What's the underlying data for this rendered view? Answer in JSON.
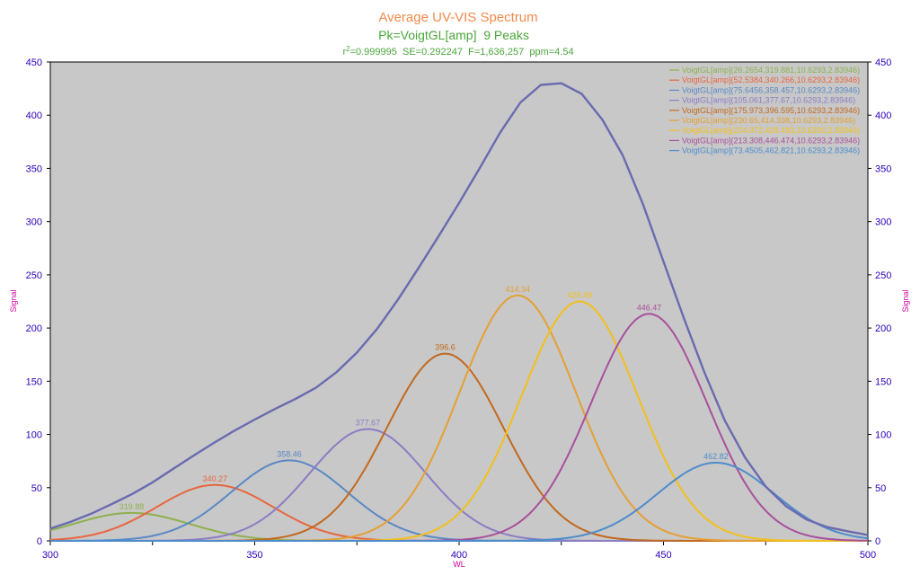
{
  "chart_data": {
    "type": "line",
    "title": "Average UV-VIS Spectrum",
    "subtitle": "Pk=VoigtGL[amp]  9 Peaks",
    "stats": {
      "r2_label": "r",
      "r2_sup": "2",
      "r2_value": "=0.999995",
      "se": "SE=0.292247",
      "f": "F=1,636,257",
      "ppm": "ppm=4.54"
    },
    "xlabel": "WL",
    "ylabel": "Signal",
    "ylabel_right": "Signal",
    "xlim": [
      300,
      500
    ],
    "ylim": [
      0,
      450
    ],
    "xticks": [
      300,
      350,
      400,
      450,
      500
    ],
    "yticks": [
      0,
      50,
      100,
      150,
      200,
      250,
      300,
      350,
      400,
      450
    ],
    "grid": false,
    "legend_position": "top-right",
    "colors": {
      "plot_bg": "#c8c8c8",
      "axis_text": "#2b00b8",
      "title": "#f08a4b",
      "subtitle": "#4aa53a",
      "stats": "#4aa53a",
      "axis_label": "#d0009a",
      "total": "#6a6ab0"
    },
    "total_curve": {
      "name": "Total",
      "x": [
        300,
        305,
        310,
        315,
        320,
        325,
        330,
        335,
        340,
        345,
        350,
        355,
        360,
        365,
        370,
        375,
        380,
        385,
        390,
        395,
        400,
        405,
        410,
        415,
        420,
        425,
        430,
        435,
        440,
        445,
        450,
        455,
        460,
        465,
        470,
        475,
        480,
        485,
        490,
        495,
        500
      ],
      "y": [
        11.5,
        18.0,
        25.5,
        34.5,
        44.0,
        55.0,
        67.5,
        80.0,
        92.0,
        103.5,
        114.0,
        124.0,
        133.5,
        144.0,
        158.5,
        177.0,
        199.5,
        226.5,
        256.0,
        286.5,
        317.5,
        350.0,
        383.5,
        412.0,
        428.5,
        430.0,
        420.0,
        396.0,
        362.5,
        316.0,
        262.5,
        209.0,
        158.5,
        113.0,
        78.0,
        51.0,
        32.5,
        20.0,
        13.0,
        9.0,
        5.5
      ]
    },
    "series": [
      {
        "name": "VoigtGL[amp](26.2654,319.881,10.6293,2.83946)",
        "amplitude": 26.2654,
        "center": 319.881,
        "width": 10.6293,
        "shape": 2.83946,
        "peak_label": "319.88",
        "color": "#8fb04c"
      },
      {
        "name": "VoigtGL[amp](52.5384,340.266,10.6293,2.83946)",
        "amplitude": 52.5384,
        "center": 340.266,
        "width": 10.6293,
        "shape": 2.83946,
        "peak_label": "340.27",
        "color": "#e8663f"
      },
      {
        "name": "VoigtGL[amp](75.6456,358.457,10.6293,2.83946)",
        "amplitude": 75.6456,
        "center": 358.457,
        "width": 10.6293,
        "shape": 2.83946,
        "peak_label": "358.46",
        "color": "#5b88c4"
      },
      {
        "name": "VoigtGL[amp](105.061,377.67,10.6293,2.83946)",
        "amplitude": 105.061,
        "center": 377.67,
        "width": 10.6293,
        "shape": 2.83946,
        "peak_label": "377.67",
        "color": "#8c7cc4"
      },
      {
        "name": "VoigtGL[amp](175.973,396.595,10.6293,2.83946)",
        "amplitude": 175.973,
        "center": 396.595,
        "width": 10.6293,
        "shape": 2.83946,
        "peak_label": "396.6",
        "color": "#c2691e"
      },
      {
        "name": "VoigtGL[amp](230.65,414.338,10.6293,2.83946)",
        "amplitude": 230.65,
        "center": 414.338,
        "width": 10.6293,
        "shape": 2.83946,
        "peak_label": "414.34",
        "color": "#e4a034"
      },
      {
        "name": "VoigtGL[amp](224.972,429.493,10.6293,2.83946)",
        "amplitude": 224.972,
        "center": 429.493,
        "width": 10.6293,
        "shape": 2.83946,
        "peak_label": "429.49",
        "color": "#f2c01c"
      },
      {
        "name": "VoigtGL[amp](213.308,446.474,10.6293,2.83946)",
        "amplitude": 213.308,
        "center": 446.474,
        "width": 10.6293,
        "shape": 2.83946,
        "peak_label": "446.47",
        "color": "#a8509c"
      },
      {
        "name": "VoigtGL[amp](73.4505,462.821,10.6293,2.83946)",
        "amplitude": 73.4505,
        "center": 462.821,
        "width": 10.6293,
        "shape": 2.83946,
        "peak_label": "462.82",
        "color": "#4d8ccc"
      }
    ]
  }
}
